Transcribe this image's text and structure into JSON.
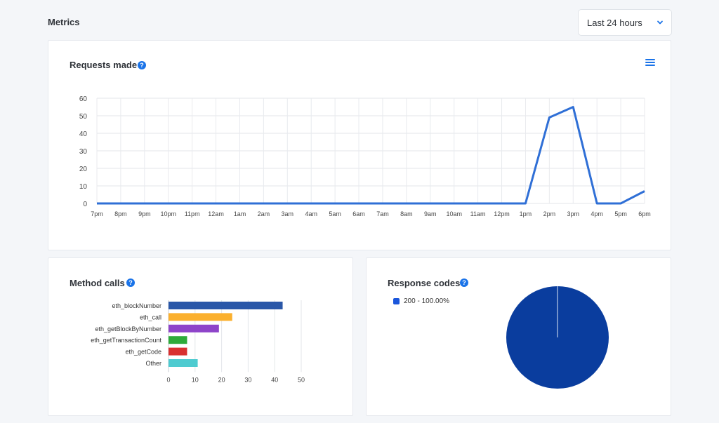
{
  "header": {
    "title": "Metrics",
    "range_select": {
      "value": "Last 24 hours"
    }
  },
  "requests_card": {
    "title": "Requests made",
    "help_icon": "help-icon",
    "menu_icon": "hamburger-icon"
  },
  "method_card": {
    "title": "Method calls"
  },
  "response_card": {
    "title": "Response codes",
    "legend_label": "200 - 100.00%"
  },
  "colors": {
    "line": "#2f6fd6",
    "pie": "#0a3d9e",
    "bars": [
      "#2a57a8",
      "#fbb02e",
      "#8e44c9",
      "#2eaa3a",
      "#d93030",
      "#4ecbd0"
    ]
  },
  "chart_data": [
    {
      "type": "line",
      "title": "Requests made",
      "x": [
        "7pm",
        "8pm",
        "9pm",
        "10pm",
        "11pm",
        "12am",
        "1am",
        "2am",
        "3am",
        "4am",
        "5am",
        "6am",
        "7am",
        "8am",
        "9am",
        "10am",
        "11am",
        "12pm",
        "1pm",
        "2pm",
        "3pm",
        "4pm",
        "5pm",
        "6pm"
      ],
      "series": [
        {
          "values": [
            0,
            0,
            0,
            0,
            0,
            0,
            0,
            0,
            0,
            0,
            0,
            0,
            0,
            0,
            0,
            0,
            0,
            0,
            0,
            49,
            55,
            0,
            0,
            7
          ]
        }
      ],
      "ylim": [
        0,
        60
      ],
      "yticks": [
        0,
        10,
        20,
        30,
        40,
        50,
        60
      ],
      "grid": true
    },
    {
      "type": "bar",
      "orientation": "horizontal",
      "title": "Method calls",
      "categories": [
        "eth_blockNumber",
        "eth_call",
        "eth_getBlockByNumber",
        "eth_getTransactionCount",
        "eth_getCode",
        "Other"
      ],
      "values": [
        43,
        24,
        19,
        7,
        7,
        11
      ],
      "xlim": [
        0,
        50
      ],
      "xticks": [
        0,
        10,
        20,
        30,
        40,
        50
      ]
    },
    {
      "type": "pie",
      "title": "Response codes",
      "categories": [
        "200"
      ],
      "values": [
        100.0
      ],
      "legend": [
        "200 - 100.00%"
      ]
    }
  ]
}
